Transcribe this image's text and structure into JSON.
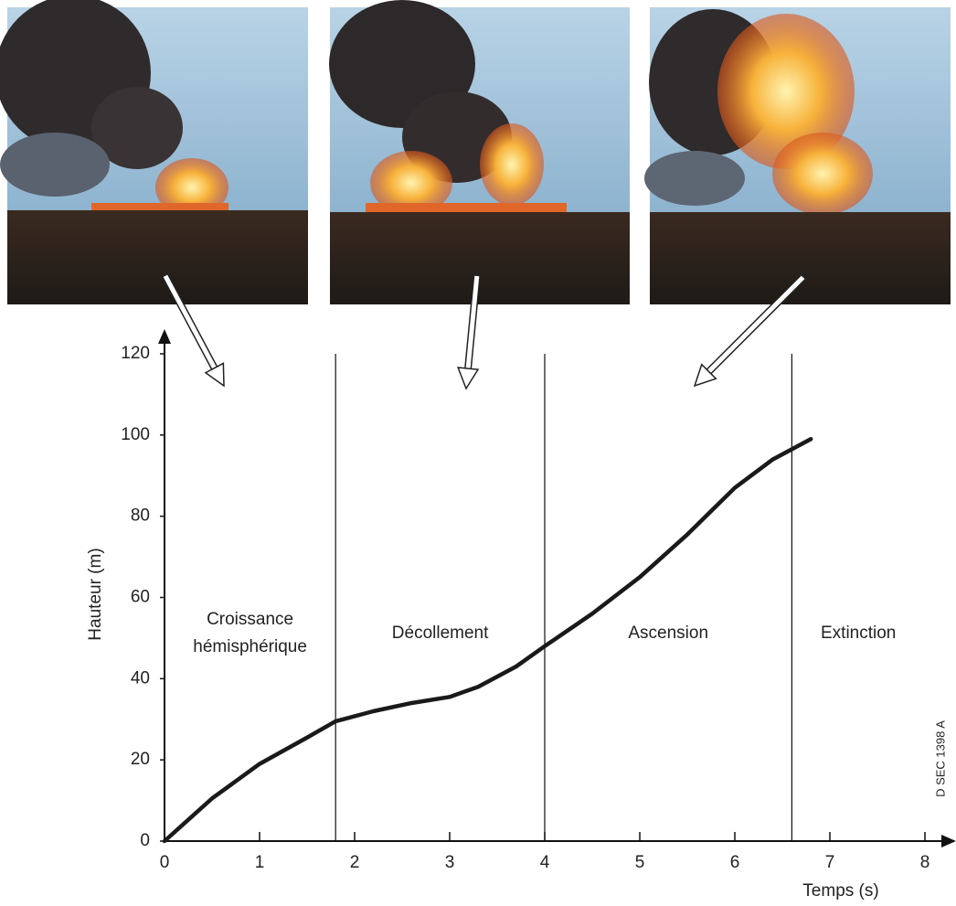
{
  "chart_data": {
    "type": "line",
    "x": [
      0,
      0.5,
      1,
      1.5,
      1.8,
      2.2,
      2.6,
      3,
      3.3,
      3.7,
      4,
      4.5,
      5,
      5.5,
      6,
      6.4,
      6.8
    ],
    "values": [
      0,
      10.5,
      19,
      25.5,
      29.5,
      32,
      34,
      35.5,
      38,
      43,
      48,
      56,
      65,
      75.5,
      87,
      94,
      99
    ],
    "color": "#1a1a1a",
    "xlim": [
      0,
      8.2
    ],
    "xticks": [
      0,
      1,
      2,
      3,
      4,
      5,
      6,
      7,
      8
    ],
    "ylim": [
      0,
      124
    ],
    "yticks": [
      0,
      20,
      40,
      60,
      80,
      100,
      120
    ],
    "x_label": "Temps (s)",
    "y_label": "Hauteur (m)",
    "phase_boundaries": [
      1.8,
      4,
      6.6
    ],
    "phase_labels": [
      "Croissance hémisphérique",
      "Décollement",
      "Ascension",
      "Extinction"
    ],
    "annotation": "D SEC 1398 A",
    "grid": false
  }
}
